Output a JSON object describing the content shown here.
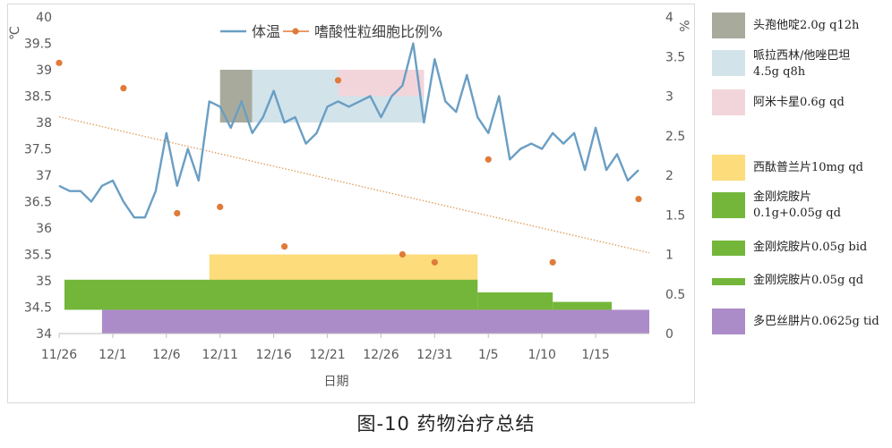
{
  "chart_data": {
    "type": "line",
    "title": "",
    "xlabel": "日期",
    "ylabel_left": "℃",
    "ylabel_right": "%",
    "ylim_left": [
      34,
      40
    ],
    "ylim_right": [
      0,
      4
    ],
    "y_ticks_left": [
      "34",
      "34.5",
      "35",
      "35.5",
      "36",
      "36.5",
      "37",
      "37.5",
      "38",
      "38.5",
      "39",
      "39.5",
      "40"
    ],
    "y_ticks_right": [
      "0",
      "0.5",
      "1",
      "1.5",
      "2",
      "2.5",
      "3",
      "3.5",
      "4"
    ],
    "x_tick_labels": [
      "11/26",
      "12/1",
      "12/6",
      "12/11",
      "12/16",
      "12/21",
      "12/26",
      "12/31",
      "1/5",
      "1/10",
      "1/15"
    ],
    "x_tick_day_index": [
      0,
      5,
      10,
      15,
      20,
      25,
      30,
      35,
      40,
      45,
      50
    ],
    "x_day_range": [
      0,
      55
    ],
    "series": [
      {
        "name": "体温",
        "axis": "left",
        "color": "#6a9ec4",
        "day_index": [
          0,
          1,
          2,
          3,
          4,
          5,
          6,
          7,
          8,
          9,
          10,
          11,
          12,
          13,
          14,
          15,
          16,
          17,
          18,
          19,
          20,
          21,
          22,
          23,
          24,
          25,
          26,
          27,
          28,
          29,
          30,
          31,
          32,
          33,
          34,
          35,
          36,
          37,
          38,
          39,
          40,
          41,
          42,
          43,
          44,
          45,
          46,
          47,
          48,
          49,
          50,
          51,
          52,
          53,
          54
        ],
        "values": [
          36.8,
          36.7,
          36.7,
          36.5,
          36.8,
          36.9,
          36.5,
          36.2,
          36.2,
          36.7,
          37.8,
          36.8,
          37.5,
          36.9,
          38.4,
          38.3,
          37.9,
          38.4,
          37.8,
          38.1,
          38.6,
          38.0,
          38.1,
          37.6,
          37.8,
          38.3,
          38.4,
          38.3,
          38.4,
          38.5,
          38.1,
          38.5,
          38.7,
          39.5,
          38.0,
          39.2,
          38.4,
          38.2,
          38.9,
          38.1,
          37.8,
          38.5,
          37.3,
          37.5,
          37.6,
          37.5,
          37.8,
          37.6,
          37.8,
          37.1,
          37.9,
          37.1,
          37.4,
          36.9,
          37.1
        ]
      },
      {
        "name": "嗜酸性粒细胞比例%",
        "axis": "right",
        "color": "#e07b3a",
        "day_index": [
          0,
          6,
          11,
          15,
          21,
          26,
          32,
          35,
          40,
          46,
          54
        ],
        "values": [
          3.42,
          3.1,
          1.52,
          1.6,
          1.1,
          3.2,
          1.0,
          0.9,
          2.2,
          0.9,
          1.7
        ]
      }
    ],
    "trendline": {
      "series": "嗜酸性粒细胞比例%",
      "axis": "right",
      "start": [
        0,
        2.74
      ],
      "end": [
        55,
        1.02
      ],
      "color": "#e2a060"
    },
    "medication_bars": [
      {
        "name": "头孢他啶2.0g q12h",
        "color": "#a8ab9c",
        "start_day": 15,
        "end_day": 18,
        "y_low": 38.0,
        "y_high": 39.0
      },
      {
        "name": "哌拉西林/他唑巴坦4.5g q8h",
        "color": "#d2e3ea",
        "start_day": 18,
        "end_day": 34,
        "y_low": 38.0,
        "y_high": 39.0
      },
      {
        "name": "阿米卡星0.6g qd",
        "color": "#f2d5da",
        "start_day": 26,
        "end_day": 34,
        "y_low": 38.5,
        "y_high": 39.0
      },
      {
        "name": "西酞普兰片10mg qd",
        "color": "#fddc7c",
        "start_day": 14,
        "end_day": 39,
        "y_low": 35.0,
        "y_high": 35.5
      },
      {
        "name": "金刚烷胺片0.1g+0.05g qd",
        "color": "#74b63a",
        "start_day": 0.5,
        "end_day": 39,
        "y_low": 34.45,
        "y_high": 35.02
      },
      {
        "name": "金刚烷胺片0.05g bid",
        "color": "#74b63a",
        "start_day": 39,
        "end_day": 46,
        "y_low": 34.45,
        "y_high": 34.78
      },
      {
        "name": "金刚烷胺片0.05g qd",
        "color": "#74b63a",
        "start_day": 46,
        "end_day": 51.5,
        "y_low": 34.45,
        "y_high": 34.6
      },
      {
        "name": "多巴丝肼片0.0625g tid",
        "color": "#ac8cc8",
        "start_day": 4,
        "end_day": 55,
        "y_low": 34.0,
        "y_high": 34.45
      }
    ]
  },
  "legend": [
    {
      "label": "头孢他啶2.0g q12h",
      "color": "#a8ab9c"
    },
    {
      "label": "哌拉西林/他唑巴坦",
      "label2": "4.5g q8h",
      "color": "#d2e3ea"
    },
    {
      "label": "阿米卡星0.6g qd",
      "color": "#f2d5da"
    },
    {
      "label": "西酞普兰片10mg qd",
      "color": "#fddc7c"
    },
    {
      "label": "金刚烷胺片",
      "label2": "0.1g+0.05g qd",
      "color": "#74b63a"
    },
    {
      "label": "金刚烷胺片0.05g bid",
      "color": "#74b63a"
    },
    {
      "label": "金刚烷胺片0.05g qd",
      "color": "#74b63a"
    },
    {
      "label": "多巴丝肼片0.0625g tid",
      "color": "#ac8cc8"
    }
  ],
  "caption": "图-10 药物治疗总结"
}
